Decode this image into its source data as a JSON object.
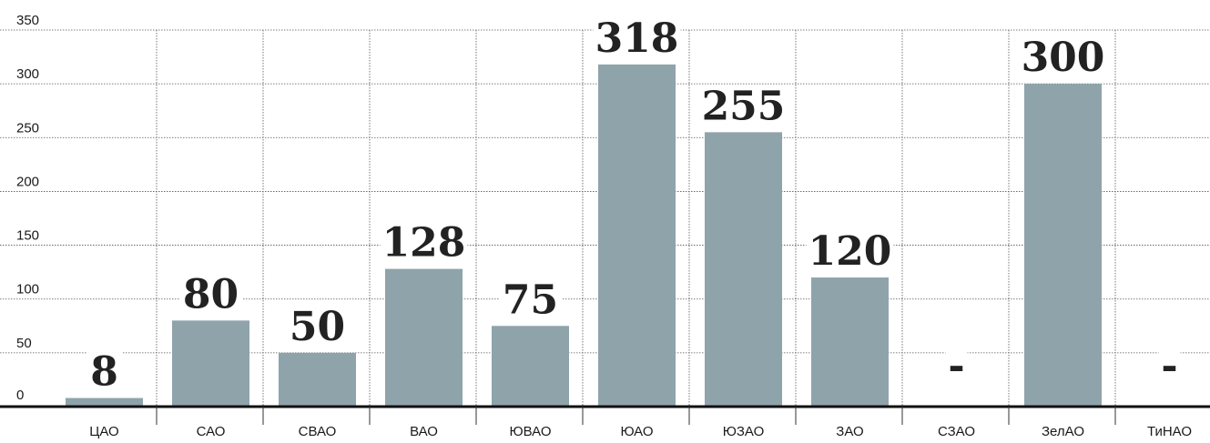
{
  "chart_data": {
    "type": "bar",
    "categories": [
      "ЦАО",
      "САО",
      "СВАО",
      "ВАО",
      "ЮВАО",
      "ЮАО",
      "ЮЗАО",
      "ЗАО",
      "СЗАО",
      "ЗелАО",
      "ТиНАО"
    ],
    "values": [
      8,
      80,
      50,
      128,
      75,
      318,
      255,
      120,
      null,
      300,
      null
    ],
    "data_labels": [
      "8",
      "80",
      "50",
      "128",
      "75",
      "318",
      "255",
      "120",
      "-",
      "300",
      "-"
    ],
    "y_ticks": [
      "0",
      "50",
      "100",
      "150",
      "200",
      "250",
      "300",
      "350"
    ],
    "ylim": [
      0,
      350
    ],
    "grid": true,
    "legend": "none",
    "bar_color": "#8fa3aa",
    "title": "",
    "xlabel": "",
    "ylabel": ""
  }
}
